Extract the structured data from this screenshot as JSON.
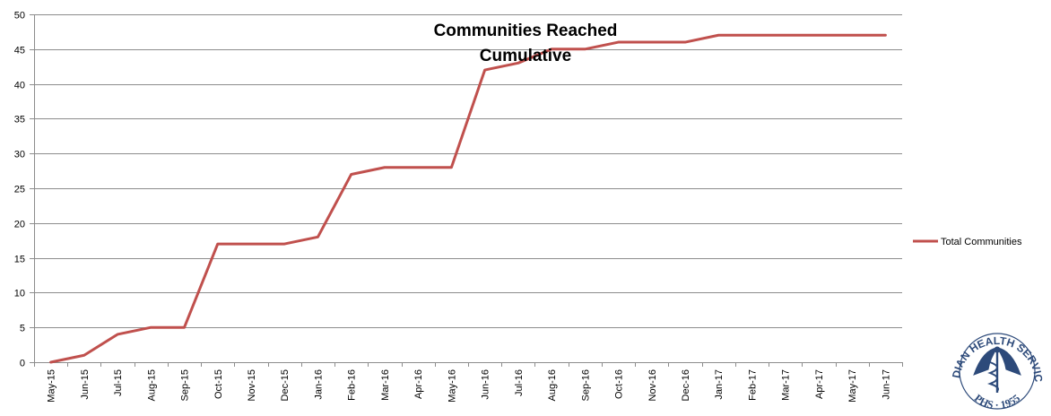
{
  "chart_data": {
    "type": "line",
    "title_lines": [
      "Communities Reached",
      "Cumulative"
    ],
    "xlabel": "",
    "ylabel": "",
    "categories": [
      "May-15",
      "Jun-15",
      "Jul-15",
      "Aug-15",
      "Sep-15",
      "Oct-15",
      "Nov-15",
      "Dec-15",
      "Jan-16",
      "Feb-16",
      "Mar-16",
      "Apr-16",
      "May-16",
      "Jun-16",
      "Jul-16",
      "Aug-16",
      "Sep-16",
      "Oct-16",
      "Nov-16",
      "Dec-16",
      "Jan-17",
      "Feb-17",
      "Mar-17",
      "Apr-17",
      "May-17",
      "Jun-17"
    ],
    "series": [
      {
        "name": "Total Communities",
        "color": "#c0504d",
        "values": [
          0,
          1,
          4,
          5,
          5,
          17,
          17,
          17,
          18,
          27,
          28,
          28,
          28,
          42,
          43,
          45,
          45,
          46,
          46,
          46,
          47,
          47,
          47,
          47,
          47,
          47
        ]
      }
    ],
    "ylim": [
      0,
      50
    ],
    "yticks": [
      0,
      5,
      10,
      15,
      20,
      25,
      30,
      35,
      40,
      45,
      50
    ],
    "grid": true,
    "legend_position": "right"
  },
  "logo": {
    "name": "indian-health-service-seal",
    "text_top": "INDIAN HEALTH SERVICE",
    "text_bottom": "PHS · 1955",
    "color": "#2d4a7a"
  }
}
